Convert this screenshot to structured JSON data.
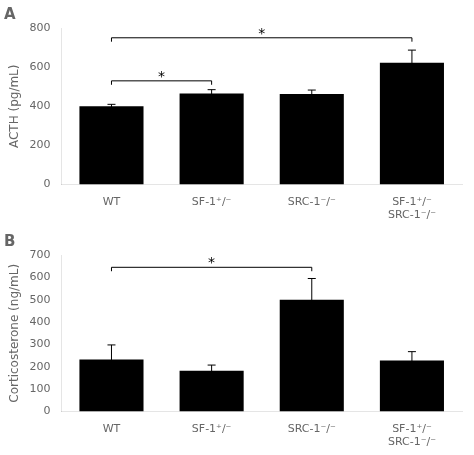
{
  "chart_data": [
    {
      "type": "bar",
      "title": "A",
      "categories": [
        "WT",
        "SF-1⁺/⁻",
        "SRC-1⁻/⁻",
        "SF-1⁺/⁻\nSRC-1⁻/⁻"
      ],
      "values": [
        400,
        465,
        463,
        622
      ],
      "errors": [
        10,
        20,
        20,
        65
      ],
      "color": "#000000",
      "y_label": "ACTH (pg/mL)",
      "ylim": [
        0,
        800
      ],
      "yticks": [
        0,
        200,
        400,
        600,
        800
      ],
      "grid": false,
      "annotations": [
        {
          "from": "WT",
          "to": "SF-1⁺/⁻",
          "y": 530,
          "label": "*"
        },
        {
          "from": "WT",
          "to": "SF-1⁺/⁻\nSRC-1⁻/⁻",
          "y": 750,
          "label": "*"
        }
      ]
    },
    {
      "type": "bar",
      "title": "B",
      "categories": [
        "WT",
        "SF-1⁺/⁻",
        "SRC-1⁻/⁻",
        "SF-1⁺/⁻\nSRC-1⁻/⁻"
      ],
      "values": [
        233,
        183,
        500,
        228
      ],
      "errors": [
        65,
        25,
        95,
        40
      ],
      "color": "#000000",
      "y_label": "Corticosterone (ng/mL)",
      "ylim": [
        0,
        700
      ],
      "yticks": [
        0,
        100,
        200,
        300,
        400,
        500,
        600,
        700
      ],
      "grid": false,
      "annotations": [
        {
          "from": "WT",
          "to": "SRC-1⁻/⁻",
          "y": 645,
          "label": "*"
        }
      ]
    }
  ]
}
